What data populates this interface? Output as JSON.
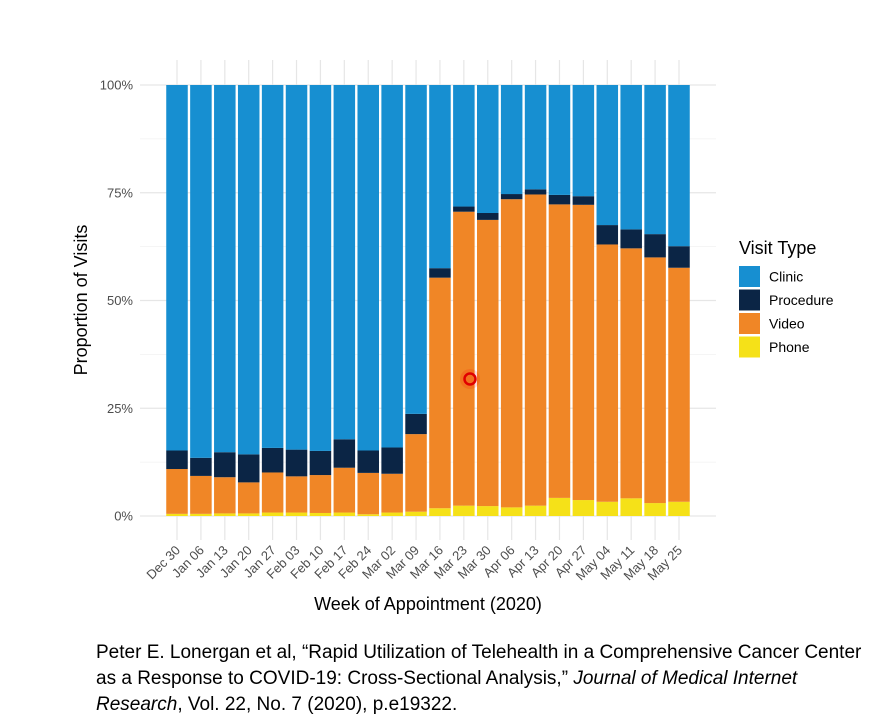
{
  "chart_data": {
    "type": "bar",
    "stacked": true,
    "xlabel": "Week of Appointment (2020)",
    "ylabel": "Proportion of Visits",
    "ylim": [
      0,
      1
    ],
    "y_ticks": [
      "0%",
      "25%",
      "50%",
      "75%",
      "100%"
    ],
    "y_tick_values": [
      0,
      0.25,
      0.5,
      0.75,
      1
    ],
    "grid": true,
    "legend": {
      "title": "Visit Type",
      "position": "right"
    },
    "categories": [
      "Dec 30",
      "Jan 06",
      "Jan 13",
      "Jan 20",
      "Jan 27",
      "Feb 03",
      "Feb 10",
      "Feb 17",
      "Feb 24",
      "Mar 02",
      "Mar 09",
      "Mar 16",
      "Mar 23",
      "Mar 30",
      "Apr 06",
      "Apr 13",
      "Apr 20",
      "Apr 27",
      "May 04",
      "May 11",
      "May 18",
      "May 25"
    ],
    "series": [
      {
        "name": "Phone",
        "color": "#f5e118",
        "values": [
          0.005,
          0.005,
          0.006,
          0.006,
          0.008,
          0.008,
          0.007,
          0.008,
          0.004,
          0.008,
          0.01,
          0.018,
          0.024,
          0.023,
          0.02,
          0.024,
          0.042,
          0.037,
          0.033,
          0.041,
          0.03,
          0.033
        ]
      },
      {
        "name": "Video",
        "color": "#f08626",
        "values": [
          0.104,
          0.088,
          0.084,
          0.072,
          0.093,
          0.084,
          0.088,
          0.104,
          0.096,
          0.09,
          0.18,
          0.535,
          0.682,
          0.664,
          0.715,
          0.722,
          0.681,
          0.685,
          0.597,
          0.58,
          0.57,
          0.543
        ]
      },
      {
        "name": "Procedure",
        "color": "#0b2545",
        "values": [
          0.043,
          0.042,
          0.058,
          0.065,
          0.057,
          0.062,
          0.056,
          0.066,
          0.052,
          0.061,
          0.047,
          0.022,
          0.012,
          0.016,
          0.012,
          0.012,
          0.022,
          0.02,
          0.045,
          0.044,
          0.054,
          0.05
        ]
      },
      {
        "name": "Clinic",
        "color": "#178fd1",
        "values": [
          0.848,
          0.865,
          0.852,
          0.857,
          0.842,
          0.846,
          0.849,
          0.822,
          0.848,
          0.841,
          0.763,
          0.425,
          0.282,
          0.297,
          0.253,
          0.242,
          0.255,
          0.258,
          0.325,
          0.335,
          0.346,
          0.374
        ]
      }
    ],
    "legend_order": [
      "Clinic",
      "Procedure",
      "Video",
      "Phone"
    ]
  },
  "citation": {
    "prefix": "Peter E. Lonergan et al, “Rapid Utilization of Telehealth in a Comprehensive Cancer Center as a Response to COVID-19: Cross-Sectional Analysis,” ",
    "journal": "Journal of Medical Internet Research",
    "suffix": ", Vol. 22, No. 7 (2020), p.e19322."
  }
}
